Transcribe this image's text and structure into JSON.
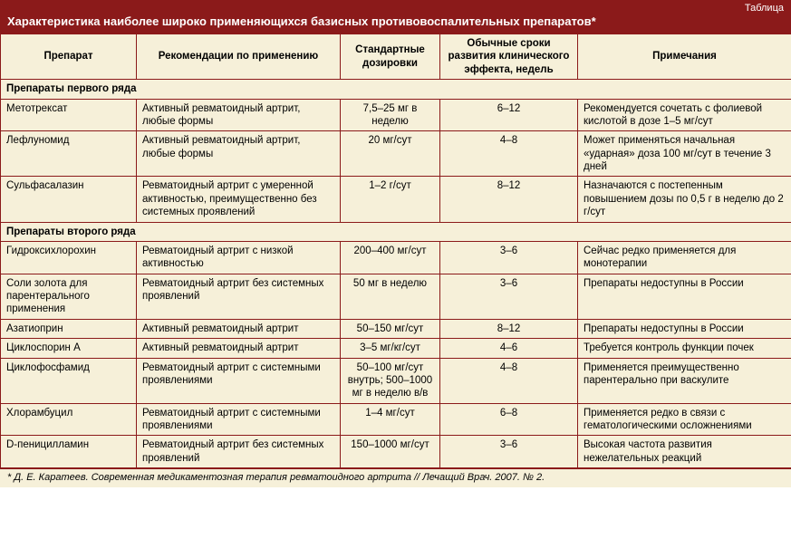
{
  "header": {
    "topLabel": "Таблица",
    "title": "Характеристика наиболее широко применяющихся базисных противовоспалительных препаратов*"
  },
  "columns": [
    "Препарат",
    "Рекомендации по применению",
    "Стандартные дозировки",
    "Обычные сроки развития клинического эффекта, недель",
    "Примечания"
  ],
  "sections": [
    {
      "title": "Препараты первого ряда",
      "rows": [
        {
          "drug": "Метотрексат",
          "recommend": "Активный ревматоидный артрит, любые формы",
          "dose": "7,5–25 мг в неделю",
          "weeks": "6–12",
          "notes": "Рекомендуется сочетать с фолиевой кислотой в дозе 1–5 мг/сут"
        },
        {
          "drug": "Лефлуномид",
          "recommend": "Активный ревматоидный артрит, любые формы",
          "dose": "20 мг/сут",
          "weeks": "4–8",
          "notes": "Может применяться начальная «ударная» доза 100 мг/сут в течение 3 дней"
        },
        {
          "drug": "Сульфасалазин",
          "recommend": "Ревматоидный артрит с умеренной активностью, преимущественно без системных проявлений",
          "dose": "1–2 г/сут",
          "weeks": "8–12",
          "notes": "Назначаются с постепенным повышением дозы по 0,5 г в неделю до 2 г/сут"
        }
      ]
    },
    {
      "title": "Препараты второго ряда",
      "rows": [
        {
          "drug": "Гидроксихлорохин",
          "recommend": "Ревматоидный артрит с низкой активностью",
          "dose": "200–400 мг/сут",
          "weeks": "3–6",
          "notes": "Сейчас редко применяется для монотерапии"
        },
        {
          "drug": "Соли золота для парентерального применения",
          "recommend": "Ревматоидный артрит без системных проявлений",
          "dose": "50 мг в неделю",
          "weeks": "3–6",
          "notes": "Препараты недоступны в России"
        },
        {
          "drug": "Азатиоприн",
          "recommend": "Активный ревматоидный артрит",
          "dose": "50–150 мг/сут",
          "weeks": "8–12",
          "notes": "Препараты недоступны в России"
        },
        {
          "drug": "Циклоспорин А",
          "recommend": "Активный ревматоидный артрит",
          "dose": "3–5 мг/кг/сут",
          "weeks": "4–6",
          "notes": "Требуется контроль функции почек"
        },
        {
          "drug": "Циклофосфамид",
          "recommend": "Ревматоидный артрит с системными проявлениями",
          "dose": "50–100 мг/сут внутрь; 500–1000 мг в неделю в/в",
          "weeks": "4–8",
          "notes": "Применяется преимущественно парентерально при васкулите"
        },
        {
          "drug": "Хлорамбуцил",
          "recommend": "Ревматоидный артрит с системными проявлениями",
          "dose": "1–4 мг/сут",
          "weeks": "6–8",
          "notes": "Применяется редко в связи с гематологическими осложнениями"
        },
        {
          "drug": "D-пеницилламин",
          "recommend": "Ревматоидный артрит без системных проявлений",
          "dose": "150–1000 мг/сут",
          "weeks": "3–6",
          "notes": "Высокая частота развития нежелательных реакций"
        }
      ]
    }
  ],
  "footnote": "* Д. Е. Каратеев. Современная медикаментозная терапия ревматоидного артрита // Лечащий Врач. 2007. № 2."
}
